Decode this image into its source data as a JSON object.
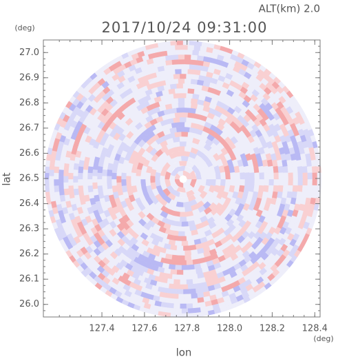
{
  "chart_data": {
    "type": "radar-ppi",
    "title": "2017/10/24 09:31:00",
    "subtitle": "ALT(km) 2.0",
    "y_unit": "(deg)",
    "x_unit": "(deg)",
    "xlabel": "lon",
    "ylabel": "lat",
    "xlim": [
      127.125,
      128.425
    ],
    "ylim": [
      25.95,
      27.05
    ],
    "xticks": [
      127.4,
      127.6,
      127.8,
      {
        "value": 128.0,
        "label": "128.0"
      },
      128.2,
      128.4
    ],
    "yticks": [
      {
        "value": 26.0,
        "label": "26.0"
      },
      26.1,
      26.2,
      26.3,
      26.4,
      26.5,
      26.6,
      26.7,
      26.8,
      26.9,
      {
        "value": 27.0,
        "label": "27.0"
      }
    ]
  }
}
